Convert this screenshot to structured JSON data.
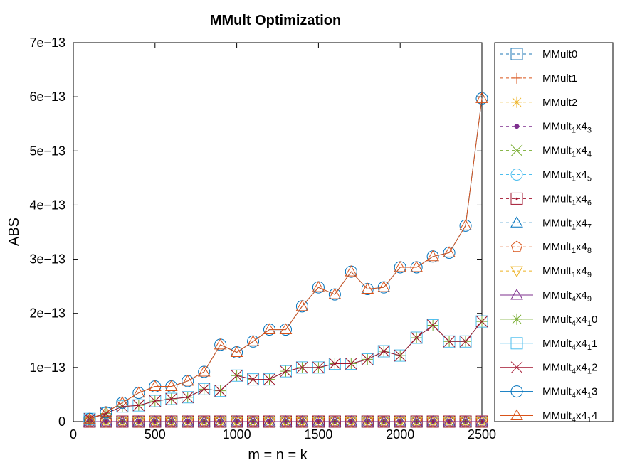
{
  "chart_data": {
    "type": "line",
    "title": "MMult Optimization",
    "xlabel": "m = n = k",
    "ylabel": "ABS",
    "xlim": [
      0,
      2500
    ],
    "ylim": [
      0,
      7e-13
    ],
    "xticks": [
      0,
      500,
      1000,
      1500,
      2000,
      2500
    ],
    "xtick_labels": [
      "0",
      "500",
      "1000",
      "1500",
      "2000",
      "2500"
    ],
    "yticks": [
      0,
      1e-13,
      2e-13,
      3e-13,
      4e-13,
      5e-13,
      6e-13,
      7e-13
    ],
    "ytick_labels": [
      "0",
      "1e−13",
      "2e−13",
      "3e−13",
      "4e−13",
      "5e−13",
      "6e−13",
      "7e−13"
    ],
    "legend_position": "outside-right",
    "x": [
      100,
      200,
      300,
      400,
      500,
      600,
      700,
      800,
      900,
      1000,
      1100,
      1200,
      1300,
      1400,
      1500,
      1600,
      1700,
      1800,
      1900,
      2000,
      2100,
      2200,
      2300,
      2400,
      2500
    ],
    "series": [
      {
        "name": "MMult0",
        "label": [
          "MMult0"
        ],
        "color": "#1f77b4",
        "marker": "square",
        "dash": true,
        "values": [
          0,
          0,
          0,
          0,
          0,
          0,
          0,
          0,
          0,
          0,
          0,
          0,
          0,
          0,
          0,
          0,
          0,
          0,
          0,
          0,
          0,
          0,
          0,
          0,
          0
        ]
      },
      {
        "name": "MMult1",
        "label": [
          "MMult1"
        ],
        "color": "#d95319",
        "marker": "plus",
        "dash": true,
        "values": [
          0,
          0,
          0,
          0,
          0,
          0,
          0,
          0,
          0,
          0,
          0,
          0,
          0,
          0,
          0,
          0,
          0,
          0,
          0,
          0,
          0,
          0,
          0,
          0,
          0
        ]
      },
      {
        "name": "MMult2",
        "label": [
          "MMult2"
        ],
        "color": "#edb120",
        "marker": "star",
        "dash": true,
        "values": [
          0,
          0,
          0,
          0,
          0,
          0,
          0,
          0,
          0,
          0,
          0,
          0,
          0,
          0,
          0,
          0,
          0,
          0,
          0,
          0,
          0,
          0,
          0,
          0,
          0
        ]
      },
      {
        "name": "MMult_1x4_3",
        "label": [
          "MMult",
          "1",
          "x4",
          "3"
        ],
        "color": "#7e2f8e",
        "marker": "dot",
        "dash": true,
        "values": [
          0,
          0,
          0,
          0,
          0,
          0,
          0,
          0,
          0,
          0,
          0,
          0,
          0,
          0,
          0,
          0,
          0,
          0,
          0,
          0,
          0,
          0,
          0,
          0,
          0
        ]
      },
      {
        "name": "MMult_1x4_4",
        "label": [
          "MMult",
          "1",
          "x4",
          "4"
        ],
        "color": "#77ac30",
        "marker": "x",
        "dash": true,
        "values": [
          0,
          0,
          0,
          0,
          0,
          0,
          0,
          0,
          0,
          0,
          0,
          0,
          0,
          0,
          0,
          0,
          0,
          0,
          0,
          0,
          0,
          0,
          0,
          0,
          0
        ]
      },
      {
        "name": "MMult_1x4_5",
        "label": [
          "MMult",
          "1",
          "x4",
          "5"
        ],
        "color": "#4dbeee",
        "marker": "circle",
        "dash": true,
        "values": [
          0,
          0,
          0,
          0,
          0,
          0,
          0,
          0,
          0,
          0,
          0,
          0,
          0,
          0,
          0,
          0,
          0,
          0,
          0,
          0,
          0,
          0,
          0,
          0,
          0
        ]
      },
      {
        "name": "MMult_1x4_6",
        "label": [
          "MMult",
          "1",
          "x4",
          "6"
        ],
        "color": "#a2142f",
        "marker": "squaredot",
        "dash": true,
        "values": [
          0,
          0,
          0,
          0,
          0,
          0,
          0,
          0,
          0,
          0,
          0,
          0,
          0,
          0,
          0,
          0,
          0,
          0,
          0,
          0,
          0,
          0,
          0,
          0,
          0
        ]
      },
      {
        "name": "MMult_1x4_7",
        "label": [
          "MMult",
          "1",
          "x4",
          "7"
        ],
        "color": "#0072bd",
        "marker": "triangle",
        "dash": true,
        "values": [
          0,
          0,
          0,
          0,
          0,
          0,
          0,
          0,
          0,
          0,
          0,
          0,
          0,
          0,
          0,
          0,
          0,
          0,
          0,
          0,
          0,
          0,
          0,
          0,
          0
        ]
      },
      {
        "name": "MMult_1x4_8",
        "label": [
          "MMult",
          "1",
          "x4",
          "8"
        ],
        "color": "#d95319",
        "marker": "pentagon",
        "dash": true,
        "values": [
          0,
          0,
          0,
          0,
          0,
          0,
          0,
          0,
          0,
          0,
          0,
          0,
          0,
          0,
          0,
          0,
          0,
          0,
          0,
          0,
          0,
          0,
          0,
          0,
          0
        ]
      },
      {
        "name": "MMult_1x4_9",
        "label": [
          "MMult",
          "1",
          "x4",
          "9"
        ],
        "color": "#edb120",
        "marker": "triangledown",
        "dash": true,
        "values": [
          0,
          0,
          0,
          0,
          0,
          0,
          0,
          0,
          0,
          0,
          0,
          0,
          0,
          0,
          0,
          0,
          0,
          0,
          0,
          0,
          0,
          0,
          0,
          0,
          0
        ]
      },
      {
        "name": "MMult_4x4_9",
        "label": [
          "MMult",
          "4",
          "x4",
          "9"
        ],
        "color": "#7e2f8e",
        "marker": "triangle",
        "dash": false,
        "values": [
          0,
          0,
          0,
          0,
          0,
          0,
          0,
          0,
          0,
          0,
          0,
          0,
          0,
          0,
          0,
          0,
          0,
          0,
          0,
          0,
          0,
          0,
          0,
          0,
          0
        ]
      },
      {
        "name": "MMult_4x4_10",
        "label": [
          "MMult",
          "4",
          "x4",
          "1",
          "0"
        ],
        "color": "#77ac30",
        "marker": "star",
        "dash": false,
        "values": [
          5e-15,
          1.5e-14,
          2.8e-14,
          3e-14,
          3.8e-14,
          4.2e-14,
          4.5e-14,
          6e-14,
          5.7e-14,
          8.5e-14,
          7.8e-14,
          7.8e-14,
          9.3e-14,
          1e-13,
          1e-13,
          1.07e-13,
          1.07e-13,
          1.15e-13,
          1.3e-13,
          1.22e-13,
          1.55e-13,
          1.78e-13,
          1.48e-13,
          1.48e-13,
          1.85e-13
        ]
      },
      {
        "name": "MMult_4x4_11",
        "label": [
          "MMult",
          "4",
          "x4",
          "1",
          "1"
        ],
        "color": "#4dbeee",
        "marker": "square",
        "dash": false,
        "values": [
          5e-15,
          1.5e-14,
          2.8e-14,
          3e-14,
          3.8e-14,
          4.2e-14,
          4.5e-14,
          6e-14,
          5.7e-14,
          8.5e-14,
          7.8e-14,
          7.8e-14,
          9.3e-14,
          1e-13,
          1e-13,
          1.07e-13,
          1.07e-13,
          1.15e-13,
          1.3e-13,
          1.22e-13,
          1.55e-13,
          1.78e-13,
          1.48e-13,
          1.48e-13,
          1.85e-13
        ]
      },
      {
        "name": "MMult_4x4_12",
        "label": [
          "MMult",
          "4",
          "x4",
          "1",
          "2"
        ],
        "color": "#a2142f",
        "marker": "x",
        "dash": false,
        "values": [
          5e-15,
          1.5e-14,
          2.8e-14,
          3e-14,
          3.8e-14,
          4.2e-14,
          4.5e-14,
          6e-14,
          5.7e-14,
          8.5e-14,
          7.8e-14,
          7.8e-14,
          9.3e-14,
          1e-13,
          1e-13,
          1.07e-13,
          1.07e-13,
          1.15e-13,
          1.3e-13,
          1.22e-13,
          1.55e-13,
          1.78e-13,
          1.48e-13,
          1.48e-13,
          1.85e-13
        ]
      },
      {
        "name": "MMult_4x4_13",
        "label": [
          "MMult",
          "4",
          "x4",
          "1",
          "3"
        ],
        "color": "#0072bd",
        "marker": "circle",
        "dash": false,
        "values": [
          5e-15,
          1.7e-14,
          3.5e-14,
          5.3e-14,
          6.5e-14,
          6.5e-14,
          7.5e-14,
          9.2e-14,
          1.42e-13,
          1.28e-13,
          1.48e-13,
          1.7e-13,
          1.7e-13,
          2.13e-13,
          2.48e-13,
          2.35e-13,
          2.77e-13,
          2.45e-13,
          2.48e-13,
          2.85e-13,
          2.85e-13,
          3.05e-13,
          3.12e-13,
          3.62e-13,
          5.97e-13
        ]
      },
      {
        "name": "MMult_4x4_14",
        "label": [
          "MMult",
          "4",
          "x4",
          "1",
          "4"
        ],
        "color": "#d95319",
        "marker": "triangle",
        "dash": false,
        "values": [
          5e-15,
          1.7e-14,
          3.5e-14,
          5.3e-14,
          6.5e-14,
          6.5e-14,
          7.5e-14,
          9.2e-14,
          1.42e-13,
          1.28e-13,
          1.48e-13,
          1.7e-13,
          1.7e-13,
          2.13e-13,
          2.48e-13,
          2.35e-13,
          2.77e-13,
          2.45e-13,
          2.48e-13,
          2.85e-13,
          2.85e-13,
          3.05e-13,
          3.12e-13,
          3.62e-13,
          5.97e-13
        ]
      }
    ]
  }
}
